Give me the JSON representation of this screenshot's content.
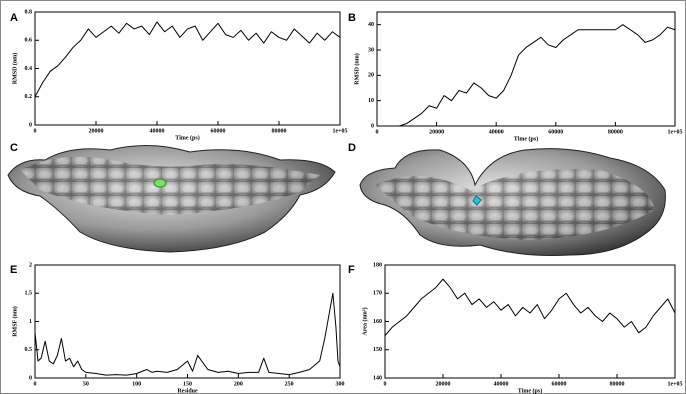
{
  "chart_data": [
    {
      "type": "line",
      "panel": "A",
      "xlabel": "Time (ps)",
      "ylabel": "RMSD (nm)",
      "color": "#000000",
      "x": [
        0,
        2500,
        5000,
        7500,
        10000,
        12500,
        15000,
        17500,
        20000,
        22500,
        25000,
        27500,
        30000,
        32500,
        35000,
        37500,
        40000,
        42500,
        45000,
        47500,
        50000,
        52500,
        55000,
        57500,
        60000,
        62500,
        65000,
        67500,
        70000,
        72500,
        75000,
        77500,
        80000,
        82500,
        85000,
        87500,
        90000,
        92500,
        95000,
        97500,
        100000
      ],
      "values": [
        0.2,
        0.3,
        0.38,
        0.42,
        0.48,
        0.55,
        0.6,
        0.68,
        0.62,
        0.66,
        0.7,
        0.65,
        0.72,
        0.68,
        0.7,
        0.64,
        0.73,
        0.66,
        0.7,
        0.62,
        0.68,
        0.7,
        0.6,
        0.66,
        0.72,
        0.64,
        0.62,
        0.67,
        0.6,
        0.65,
        0.58,
        0.66,
        0.62,
        0.6,
        0.68,
        0.63,
        0.58,
        0.65,
        0.6,
        0.66,
        0.62
      ],
      "xlim": [
        0,
        100000
      ],
      "xticks": [
        0,
        20000,
        40000,
        60000,
        80000,
        {
          "value": 100000,
          "label": "1e+05"
        }
      ],
      "ylim": [
        0,
        0.8
      ],
      "yticks": [
        0,
        0.2,
        0.4,
        0.6,
        0.8
      ]
    },
    {
      "type": "line",
      "panel": "B",
      "xlabel": "Time (ps)",
      "ylabel": "RMSD (nm)",
      "color": "#000000",
      "x": [
        0,
        2500,
        5000,
        7500,
        10000,
        12500,
        15000,
        17500,
        20000,
        22500,
        25000,
        27500,
        30000,
        32500,
        35000,
        37500,
        40000,
        42500,
        45000,
        47500,
        50000,
        52500,
        55000,
        57500,
        60000,
        62500,
        65000,
        67500,
        70000,
        72500,
        75000,
        77500,
        80000,
        82500,
        85000,
        87500,
        90000,
        92500,
        95000,
        97500,
        100000
      ],
      "values": [
        0,
        0,
        0,
        0,
        1,
        3,
        5,
        8,
        7,
        12,
        10,
        14,
        13,
        17,
        15,
        12,
        11,
        14,
        20,
        28,
        31,
        33,
        35,
        32,
        31,
        34,
        36,
        38,
        38,
        38,
        38,
        38,
        38,
        40,
        38,
        36,
        33,
        34,
        36,
        39,
        38
      ],
      "xlim": [
        0,
        100000
      ],
      "xticks": [
        0,
        20000,
        40000,
        60000,
        80000,
        {
          "value": 100000,
          "label": "1e+05"
        }
      ],
      "ylim": [
        0,
        45
      ],
      "yticks": [
        0,
        10,
        20,
        30,
        40
      ]
    },
    {
      "type": "line",
      "panel": "E",
      "xlabel": "Residue",
      "ylabel": "RMSF (nm)",
      "color": "#000000",
      "x": [
        0,
        3,
        6,
        10,
        14,
        18,
        22,
        26,
        30,
        34,
        38,
        42,
        46,
        50,
        60,
        70,
        80,
        90,
        100,
        110,
        115,
        120,
        130,
        140,
        150,
        155,
        160,
        170,
        180,
        190,
        200,
        210,
        220,
        225,
        230,
        240,
        250,
        260,
        270,
        280,
        285,
        290,
        293,
        296,
        298,
        300
      ],
      "values": [
        0.8,
        0.3,
        0.35,
        0.65,
        0.3,
        0.25,
        0.4,
        0.7,
        0.3,
        0.35,
        0.2,
        0.3,
        0.15,
        0.1,
        0.08,
        0.05,
        0.06,
        0.05,
        0.08,
        0.15,
        0.1,
        0.12,
        0.1,
        0.15,
        0.3,
        0.12,
        0.4,
        0.15,
        0.1,
        0.12,
        0.08,
        0.1,
        0.1,
        0.35,
        0.1,
        0.08,
        0.06,
        0.1,
        0.15,
        0.3,
        0.7,
        1.2,
        1.5,
        0.9,
        0.3,
        0.2
      ],
      "xlim": [
        0,
        300
      ],
      "xticks": [
        0,
        50,
        100,
        150,
        200,
        250,
        300
      ],
      "ylim": [
        0,
        2
      ],
      "yticks": [
        0,
        0.5,
        1,
        1.5,
        2
      ]
    },
    {
      "type": "line",
      "panel": "F",
      "xlabel": "Time (ps)",
      "ylabel": "Area (nm²)",
      "color": "#000000",
      "x": [
        0,
        2500,
        5000,
        7500,
        10000,
        12500,
        15000,
        17500,
        20000,
        22500,
        25000,
        27500,
        30000,
        32500,
        35000,
        37500,
        40000,
        42500,
        45000,
        47500,
        50000,
        52500,
        55000,
        57500,
        60000,
        62500,
        65000,
        67500,
        70000,
        72500,
        75000,
        77500,
        80000,
        82500,
        85000,
        87500,
        90000,
        92500,
        95000,
        97500,
        100000
      ],
      "values": [
        155,
        158,
        160,
        162,
        165,
        168,
        170,
        172,
        175,
        172,
        168,
        170,
        166,
        168,
        165,
        167,
        164,
        166,
        162,
        165,
        163,
        166,
        161,
        164,
        168,
        170,
        166,
        163,
        165,
        162,
        160,
        163,
        161,
        158,
        160,
        156,
        158,
        162,
        165,
        168,
        163
      ],
      "xlim": [
        0,
        100000
      ],
      "xticks": [
        0,
        20000,
        40000,
        60000,
        80000,
        {
          "value": 100000,
          "label": "1e+05"
        }
      ],
      "ylim": [
        140,
        180
      ],
      "yticks": [
        140,
        150,
        160,
        170,
        180
      ]
    }
  ],
  "images": [
    {
      "panel": "C"
    },
    {
      "panel": "D"
    }
  ]
}
